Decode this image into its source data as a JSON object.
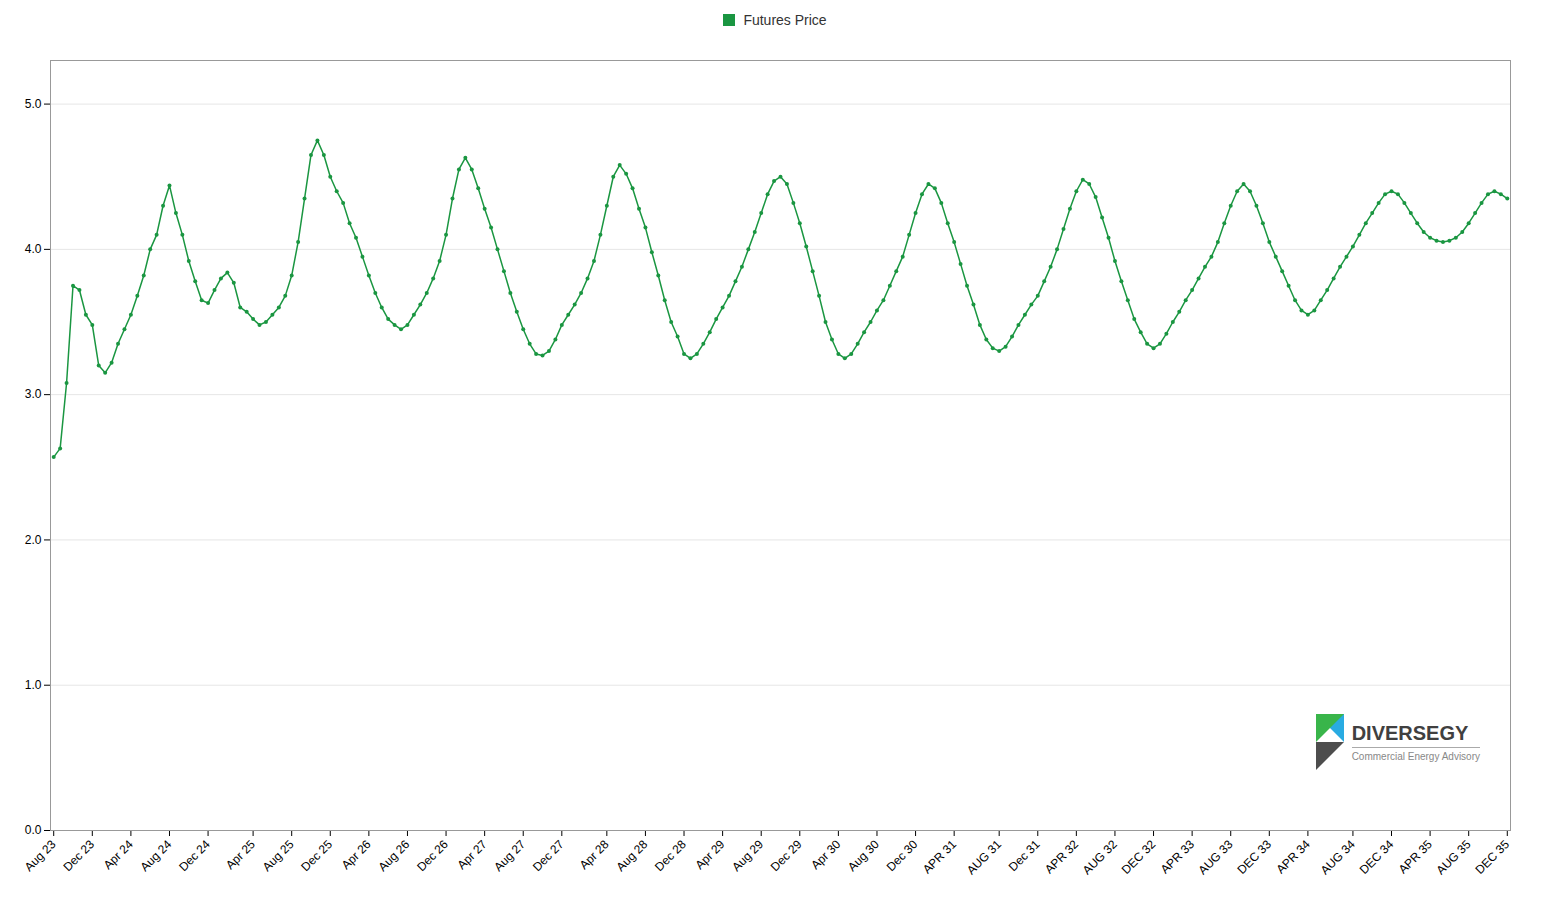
{
  "chart_data": {
    "type": "line",
    "categories": [
      "Aug 23",
      null,
      null,
      null,
      null,
      null,
      "Dec 23",
      null,
      null,
      null,
      null,
      null,
      "Apr 24",
      null,
      null,
      null,
      null,
      null,
      "Aug 24",
      null,
      null,
      null,
      null,
      null,
      "Dec 24",
      null,
      null,
      null,
      null,
      null,
      null,
      "Apr 25",
      null,
      null,
      null,
      null,
      null,
      "Aug 25",
      null,
      null,
      null,
      null,
      null,
      "Dec 25",
      null,
      null,
      null,
      null,
      null,
      "Apr 26",
      null,
      null,
      null,
      null,
      null,
      "Aug 26",
      null,
      null,
      null,
      null,
      null,
      "Dec 26",
      null,
      null,
      null,
      null,
      null,
      "Apr 27",
      null,
      null,
      null,
      null,
      null,
      "Aug 27",
      null,
      null,
      null,
      null,
      null,
      "Dec 27",
      null,
      null,
      null,
      null,
      null,
      null,
      "Apr 28",
      null,
      null,
      null,
      null,
      null,
      "Aug 28",
      null,
      null,
      null,
      null,
      null,
      "Dec 28",
      null,
      null,
      null,
      null,
      null,
      "Apr 29",
      null,
      null,
      null,
      null,
      null,
      "Aug 29",
      null,
      null,
      null,
      null,
      null,
      "Dec 29",
      null,
      null,
      null,
      null,
      null,
      "Apr 30",
      null,
      null,
      null,
      null,
      null,
      "Aug 30",
      null,
      null,
      null,
      null,
      null,
      "Dec 30",
      null,
      null,
      null,
      null,
      null,
      "APR 31",
      null,
      null,
      null,
      null,
      null,
      null,
      "AUG 31",
      null,
      null,
      null,
      null,
      null,
      "Dec 31",
      null,
      null,
      null,
      null,
      null,
      "APR 32",
      null,
      null,
      null,
      null,
      null,
      "AUG 32",
      null,
      null,
      null,
      null,
      null,
      "DEC 32",
      null,
      null,
      null,
      null,
      null,
      "APR 33",
      null,
      null,
      null,
      null,
      null,
      "AUG 33",
      null,
      null,
      null,
      null,
      null,
      "DEC 33",
      null,
      null,
      null,
      null,
      null,
      "APR 34",
      null,
      null,
      null,
      null,
      null,
      null,
      "AUG 34",
      null,
      null,
      null,
      null,
      null,
      "DEC 34",
      null,
      null,
      null,
      null,
      null,
      "APR 35",
      null,
      null,
      null,
      null,
      null,
      "AUG 35",
      null,
      null,
      null,
      null,
      null,
      "DEC 35"
    ],
    "series": [
      {
        "name": "Futures Price",
        "color": "#1a9641",
        "marker": "circle",
        "values": [
          2.57,
          2.63,
          3.08,
          3.75,
          3.72,
          3.55,
          3.48,
          3.2,
          3.15,
          3.22,
          3.35,
          3.45,
          3.55,
          3.68,
          3.82,
          4.0,
          4.1,
          4.3,
          4.44,
          4.25,
          4.1,
          3.92,
          3.78,
          3.65,
          3.63,
          3.72,
          3.8,
          3.84,
          3.77,
          3.6,
          3.57,
          3.52,
          3.48,
          3.5,
          3.55,
          3.6,
          3.68,
          3.82,
          4.05,
          4.35,
          4.65,
          4.75,
          4.65,
          4.5,
          4.4,
          4.32,
          4.18,
          4.08,
          3.95,
          3.82,
          3.7,
          3.6,
          3.52,
          3.48,
          3.45,
          3.48,
          3.55,
          3.62,
          3.7,
          3.8,
          3.92,
          4.1,
          4.35,
          4.55,
          4.63,
          4.55,
          4.42,
          4.28,
          4.15,
          4.0,
          3.85,
          3.7,
          3.57,
          3.45,
          3.35,
          3.28,
          3.27,
          3.3,
          3.38,
          3.48,
          3.55,
          3.62,
          3.7,
          3.8,
          3.92,
          4.1,
          4.3,
          4.5,
          4.58,
          4.52,
          4.42,
          4.28,
          4.15,
          3.98,
          3.82,
          3.65,
          3.5,
          3.4,
          3.28,
          3.25,
          3.28,
          3.35,
          3.43,
          3.52,
          3.6,
          3.68,
          3.78,
          3.88,
          4.0,
          4.12,
          4.25,
          4.38,
          4.47,
          4.5,
          4.45,
          4.32,
          4.18,
          4.02,
          3.85,
          3.68,
          3.5,
          3.38,
          3.28,
          3.25,
          3.28,
          3.35,
          3.43,
          3.5,
          3.58,
          3.65,
          3.75,
          3.85,
          3.95,
          4.1,
          4.25,
          4.38,
          4.45,
          4.42,
          4.32,
          4.18,
          4.05,
          3.9,
          3.75,
          3.62,
          3.48,
          3.38,
          3.32,
          3.3,
          3.33,
          3.4,
          3.48,
          3.55,
          3.62,
          3.68,
          3.78,
          3.88,
          4.0,
          4.14,
          4.28,
          4.4,
          4.48,
          4.45,
          4.36,
          4.22,
          4.08,
          3.92,
          3.78,
          3.65,
          3.52,
          3.43,
          3.35,
          3.32,
          3.35,
          3.42,
          3.5,
          3.57,
          3.65,
          3.72,
          3.8,
          3.88,
          3.95,
          4.05,
          4.18,
          4.3,
          4.4,
          4.45,
          4.4,
          4.3,
          4.18,
          4.05,
          3.95,
          3.85,
          3.75,
          3.65,
          3.58,
          3.55,
          3.58,
          3.65,
          3.72,
          3.8,
          3.88,
          3.95,
          4.02,
          4.1,
          4.18,
          4.25,
          4.32,
          4.38,
          4.4,
          4.38,
          4.32,
          4.25,
          4.18,
          4.12,
          4.08,
          4.06,
          4.05,
          4.06,
          4.08,
          4.12,
          4.18,
          4.25,
          4.32,
          4.38,
          4.4,
          4.38,
          4.35
        ]
      }
    ],
    "ylim": [
      0,
      5.3
    ],
    "yticks": [
      0,
      1,
      2,
      3,
      4,
      5
    ],
    "grid": true,
    "legend": "top",
    "annotations": [
      "DIVERSEGY",
      "Commercial Energy Advisory"
    ]
  }
}
